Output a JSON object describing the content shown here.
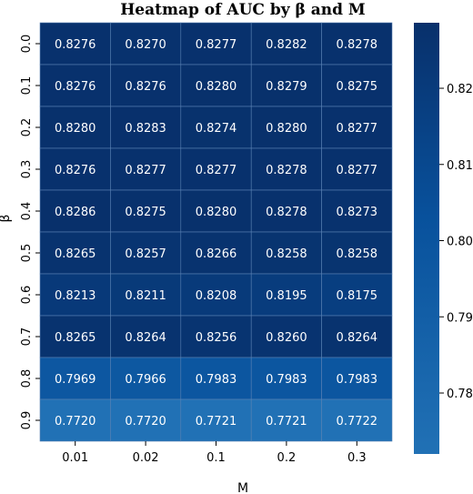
{
  "chart_data": {
    "type": "heatmap",
    "title": "Heatmap of AUC by β and M",
    "xlabel": "M",
    "ylabel": "β",
    "x_categories": [
      "0.01",
      "0.02",
      "0.1",
      "0.2",
      "0.3"
    ],
    "y_categories": [
      "0.0",
      "0.1",
      "0.2",
      "0.3",
      "0.4",
      "0.5",
      "0.6",
      "0.7",
      "0.8",
      "0.9"
    ],
    "values": [
      [
        0.8276,
        0.827,
        0.8277,
        0.8282,
        0.8278
      ],
      [
        0.8276,
        0.8276,
        0.828,
        0.8279,
        0.8275
      ],
      [
        0.828,
        0.8283,
        0.8274,
        0.828,
        0.8277
      ],
      [
        0.8276,
        0.8277,
        0.8277,
        0.8278,
        0.8277
      ],
      [
        0.8286,
        0.8275,
        0.828,
        0.8278,
        0.8273
      ],
      [
        0.8265,
        0.8257,
        0.8266,
        0.8258,
        0.8258
      ],
      [
        0.8213,
        0.8211,
        0.8208,
        0.8195,
        0.8175
      ],
      [
        0.8265,
        0.8264,
        0.8256,
        0.826,
        0.8264
      ],
      [
        0.7969,
        0.7966,
        0.7983,
        0.7983,
        0.7983
      ],
      [
        0.772,
        0.772,
        0.7721,
        0.7721,
        0.7722
      ]
    ],
    "value_labels": [
      [
        "0.8276",
        "0.8270",
        "0.8277",
        "0.8282",
        "0.8278"
      ],
      [
        "0.8276",
        "0.8276",
        "0.8280",
        "0.8279",
        "0.8275"
      ],
      [
        "0.8280",
        "0.8283",
        "0.8274",
        "0.8280",
        "0.8277"
      ],
      [
        "0.8276",
        "0.8277",
        "0.8277",
        "0.8278",
        "0.8277"
      ],
      [
        "0.8286",
        "0.8275",
        "0.8280",
        "0.8278",
        "0.8273"
      ],
      [
        "0.8265",
        "0.8257",
        "0.8266",
        "0.8258",
        "0.8258"
      ],
      [
        "0.8213",
        "0.8211",
        "0.8208",
        "0.8195",
        "0.8175"
      ],
      [
        "0.8265",
        "0.8264",
        "0.8256",
        "0.8260",
        "0.8264"
      ],
      [
        "0.7969",
        "0.7966",
        "0.7983",
        "0.7983",
        "0.7983"
      ],
      [
        "0.7720",
        "0.7720",
        "0.7721",
        "0.7721",
        "0.7722"
      ]
    ],
    "colorbar": {
      "ticks": [
        0.78,
        0.79,
        0.8,
        0.81,
        0.82
      ],
      "tick_labels": [
        "0.78",
        "0.79",
        "0.80",
        "0.81",
        "0.82"
      ],
      "range": [
        0.772,
        0.8286
      ]
    },
    "colormap": "Blues",
    "colors": {
      "low": "#2171b5",
      "mid": "#08519c",
      "high": "#08306b",
      "grid_line": "#5a82b4"
    },
    "grid": false
  }
}
